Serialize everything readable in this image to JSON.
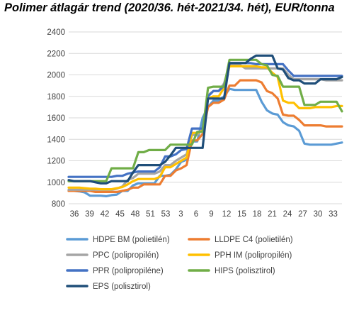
{
  "chart_data": {
    "type": "line",
    "title": "Polimer átlagár trend (2020/36. hét-2021/34. hét), EUR/tonna",
    "xlabel": "",
    "ylabel": "",
    "ylim": [
      800,
      2400
    ],
    "yticks": [
      800,
      1000,
      1200,
      1400,
      1600,
      1800,
      2000,
      2200,
      2400
    ],
    "x": [
      36,
      37,
      38,
      39,
      40,
      41,
      42,
      43,
      44,
      45,
      46,
      47,
      48,
      49,
      50,
      51,
      52,
      53,
      1,
      2,
      3,
      4,
      5,
      6,
      7,
      8,
      9,
      10,
      11,
      12,
      13,
      14,
      15,
      16,
      17,
      18,
      19,
      20,
      21,
      22,
      23,
      24,
      25,
      26,
      27,
      28,
      29,
      30,
      31,
      32,
      33,
      34
    ],
    "xticklabels": [
      "36",
      "39",
      "42",
      "45",
      "48",
      "51",
      "53",
      "3",
      "6",
      "9",
      "12",
      "15",
      "18",
      "21",
      "24",
      "27",
      "30",
      "33"
    ],
    "grid": "horizontal",
    "legend_position": "bottom",
    "series": [
      {
        "name": "HDPE BM (polietilén)",
        "color": "#5b9bd5",
        "values": [
          920,
          920,
          915,
          905,
          875,
          875,
          875,
          870,
          880,
          885,
          920,
          920,
          970,
          990,
          990,
          990,
          990,
          1060,
          1060,
          1070,
          1120,
          1190,
          1210,
          1380,
          1380,
          1600,
          1700,
          1760,
          1760,
          1800,
          1870,
          1860,
          1860,
          1860,
          1860,
          1860,
          1750,
          1670,
          1640,
          1630,
          1560,
          1530,
          1520,
          1480,
          1360,
          1350,
          1350,
          1350,
          1350,
          1350,
          1360,
          1370
        ]
      },
      {
        "name": "LLDPE C4 (polietilén)",
        "color": "#ed7d31",
        "values": [
          920,
          920,
          920,
          920,
          920,
          910,
          910,
          910,
          910,
          910,
          920,
          930,
          950,
          950,
          980,
          980,
          980,
          980,
          1060,
          1060,
          1110,
          1130,
          1160,
          1390,
          1390,
          1450,
          1700,
          1740,
          1740,
          1770,
          1900,
          1900,
          1950,
          1950,
          1950,
          1950,
          1930,
          1850,
          1830,
          1780,
          1630,
          1620,
          1620,
          1580,
          1530,
          1530,
          1530,
          1530,
          1520,
          1520,
          1520,
          1520
        ]
      },
      {
        "name": "PPC (polipropilén)",
        "color": "#a5a5a5",
        "values": [
          930,
          930,
          930,
          930,
          930,
          930,
          930,
          930,
          930,
          940,
          960,
          1020,
          1040,
          1080,
          1080,
          1080,
          1080,
          1100,
          1160,
          1160,
          1200,
          1230,
          1260,
          1440,
          1440,
          1500,
          1810,
          1850,
          1850,
          1920,
          2090,
          2090,
          2090,
          2060,
          2060,
          2060,
          2060,
          2060,
          2060,
          2060,
          2060,
          2000,
          1960,
          1960,
          1960,
          1960,
          1960,
          1960,
          1950,
          1950,
          1950,
          1950
        ]
      },
      {
        "name": "PPH IM (polipropilén)",
        "color": "#ffc000",
        "values": [
          950,
          950,
          950,
          945,
          940,
          940,
          935,
          935,
          935,
          945,
          955,
          980,
          1010,
          1030,
          1030,
          1030,
          1030,
          1050,
          1140,
          1140,
          1170,
          1200,
          1230,
          1460,
          1460,
          1480,
          1780,
          1800,
          1800,
          1880,
          2080,
          2080,
          2080,
          2080,
          2080,
          2080,
          2070,
          2070,
          2020,
          1980,
          1760,
          1740,
          1740,
          1690,
          1690,
          1690,
          1700,
          1700,
          1700,
          1700,
          1710,
          1710
        ]
      },
      {
        "name": "PPR (polipropiléne)",
        "color": "#4472c4",
        "values": [
          1050,
          1050,
          1050,
          1050,
          1050,
          1050,
          1050,
          1050,
          1050,
          1060,
          1060,
          1080,
          1090,
          1100,
          1100,
          1100,
          1100,
          1140,
          1240,
          1240,
          1260,
          1300,
          1310,
          1500,
          1500,
          1500,
          1800,
          1850,
          1850,
          1900,
          2110,
          2110,
          2110,
          2110,
          2110,
          2100,
          2100,
          2100,
          2100,
          2100,
          2100,
          2040,
          1990,
          1990,
          1990,
          1990,
          1990,
          1990,
          1990,
          1990,
          1990,
          1990
        ]
      },
      {
        "name": "HIPS (polisztirol)",
        "color": "#70ad47",
        "values": [
          1010,
          1010,
          1010,
          1010,
          1010,
          1010,
          1010,
          1010,
          1130,
          1130,
          1130,
          1130,
          1130,
          1280,
          1280,
          1300,
          1300,
          1300,
          1300,
          1350,
          1350,
          1350,
          1350,
          1350,
          1470,
          1470,
          1880,
          1890,
          1890,
          1890,
          2140,
          2140,
          2140,
          2140,
          2140,
          2140,
          2100,
          2090,
          2000,
          1990,
          1890,
          1890,
          1890,
          1890,
          1720,
          1720,
          1720,
          1750,
          1750,
          1750,
          1750,
          1660
        ]
      },
      {
        "name": "EPS (polisztirol)",
        "color": "#1f4e79",
        "values": [
          1020,
          1010,
          1010,
          1010,
          1010,
          1000,
          990,
          990,
          1010,
          1010,
          1010,
          1010,
          1090,
          1160,
          1160,
          1160,
          1160,
          1160,
          1190,
          1250,
          1320,
          1320,
          1320,
          1320,
          1320,
          1320,
          1780,
          1780,
          1780,
          1780,
          2110,
          2110,
          2110,
          2110,
          2150,
          2180,
          2180,
          2180,
          2180,
          2060,
          2050,
          1970,
          1950,
          1950,
          1920,
          1920,
          1920,
          1960,
          1960,
          1960,
          1960,
          1980
        ]
      }
    ]
  }
}
